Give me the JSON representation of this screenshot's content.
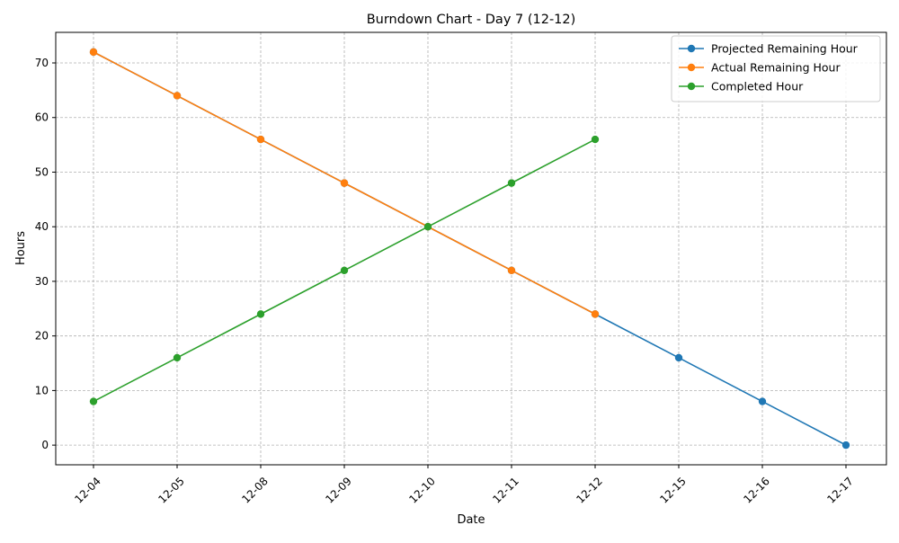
{
  "chart_data": {
    "type": "line",
    "title": "Burndown Chart - Day 7 (12-12)",
    "xlabel": "Date",
    "ylabel": "Hours",
    "categories": [
      "12-04",
      "12-05",
      "12-08",
      "12-09",
      "12-10",
      "12-11",
      "12-12",
      "12-15",
      "12-16",
      "12-17"
    ],
    "ylim": [
      -3.6,
      75.6
    ],
    "yticks": [
      0,
      10,
      20,
      30,
      40,
      50,
      60,
      70
    ],
    "grid": true,
    "legend_position": "top-right",
    "series": [
      {
        "name": "Projected Remaining Hour",
        "color": "#1f77b4",
        "marker": "circle",
        "values": [
          72,
          64,
          56,
          48,
          40,
          32,
          24,
          16,
          8,
          0
        ]
      },
      {
        "name": "Actual Remaining Hour",
        "color": "#ff7f0e",
        "marker": "circle",
        "values": [
          72,
          64,
          56,
          48,
          40,
          32,
          24,
          null,
          null,
          null
        ]
      },
      {
        "name": "Completed Hour",
        "color": "#2ca02c",
        "marker": "circle",
        "values": [
          8,
          16,
          24,
          32,
          40,
          48,
          56,
          null,
          null,
          null
        ]
      }
    ]
  }
}
